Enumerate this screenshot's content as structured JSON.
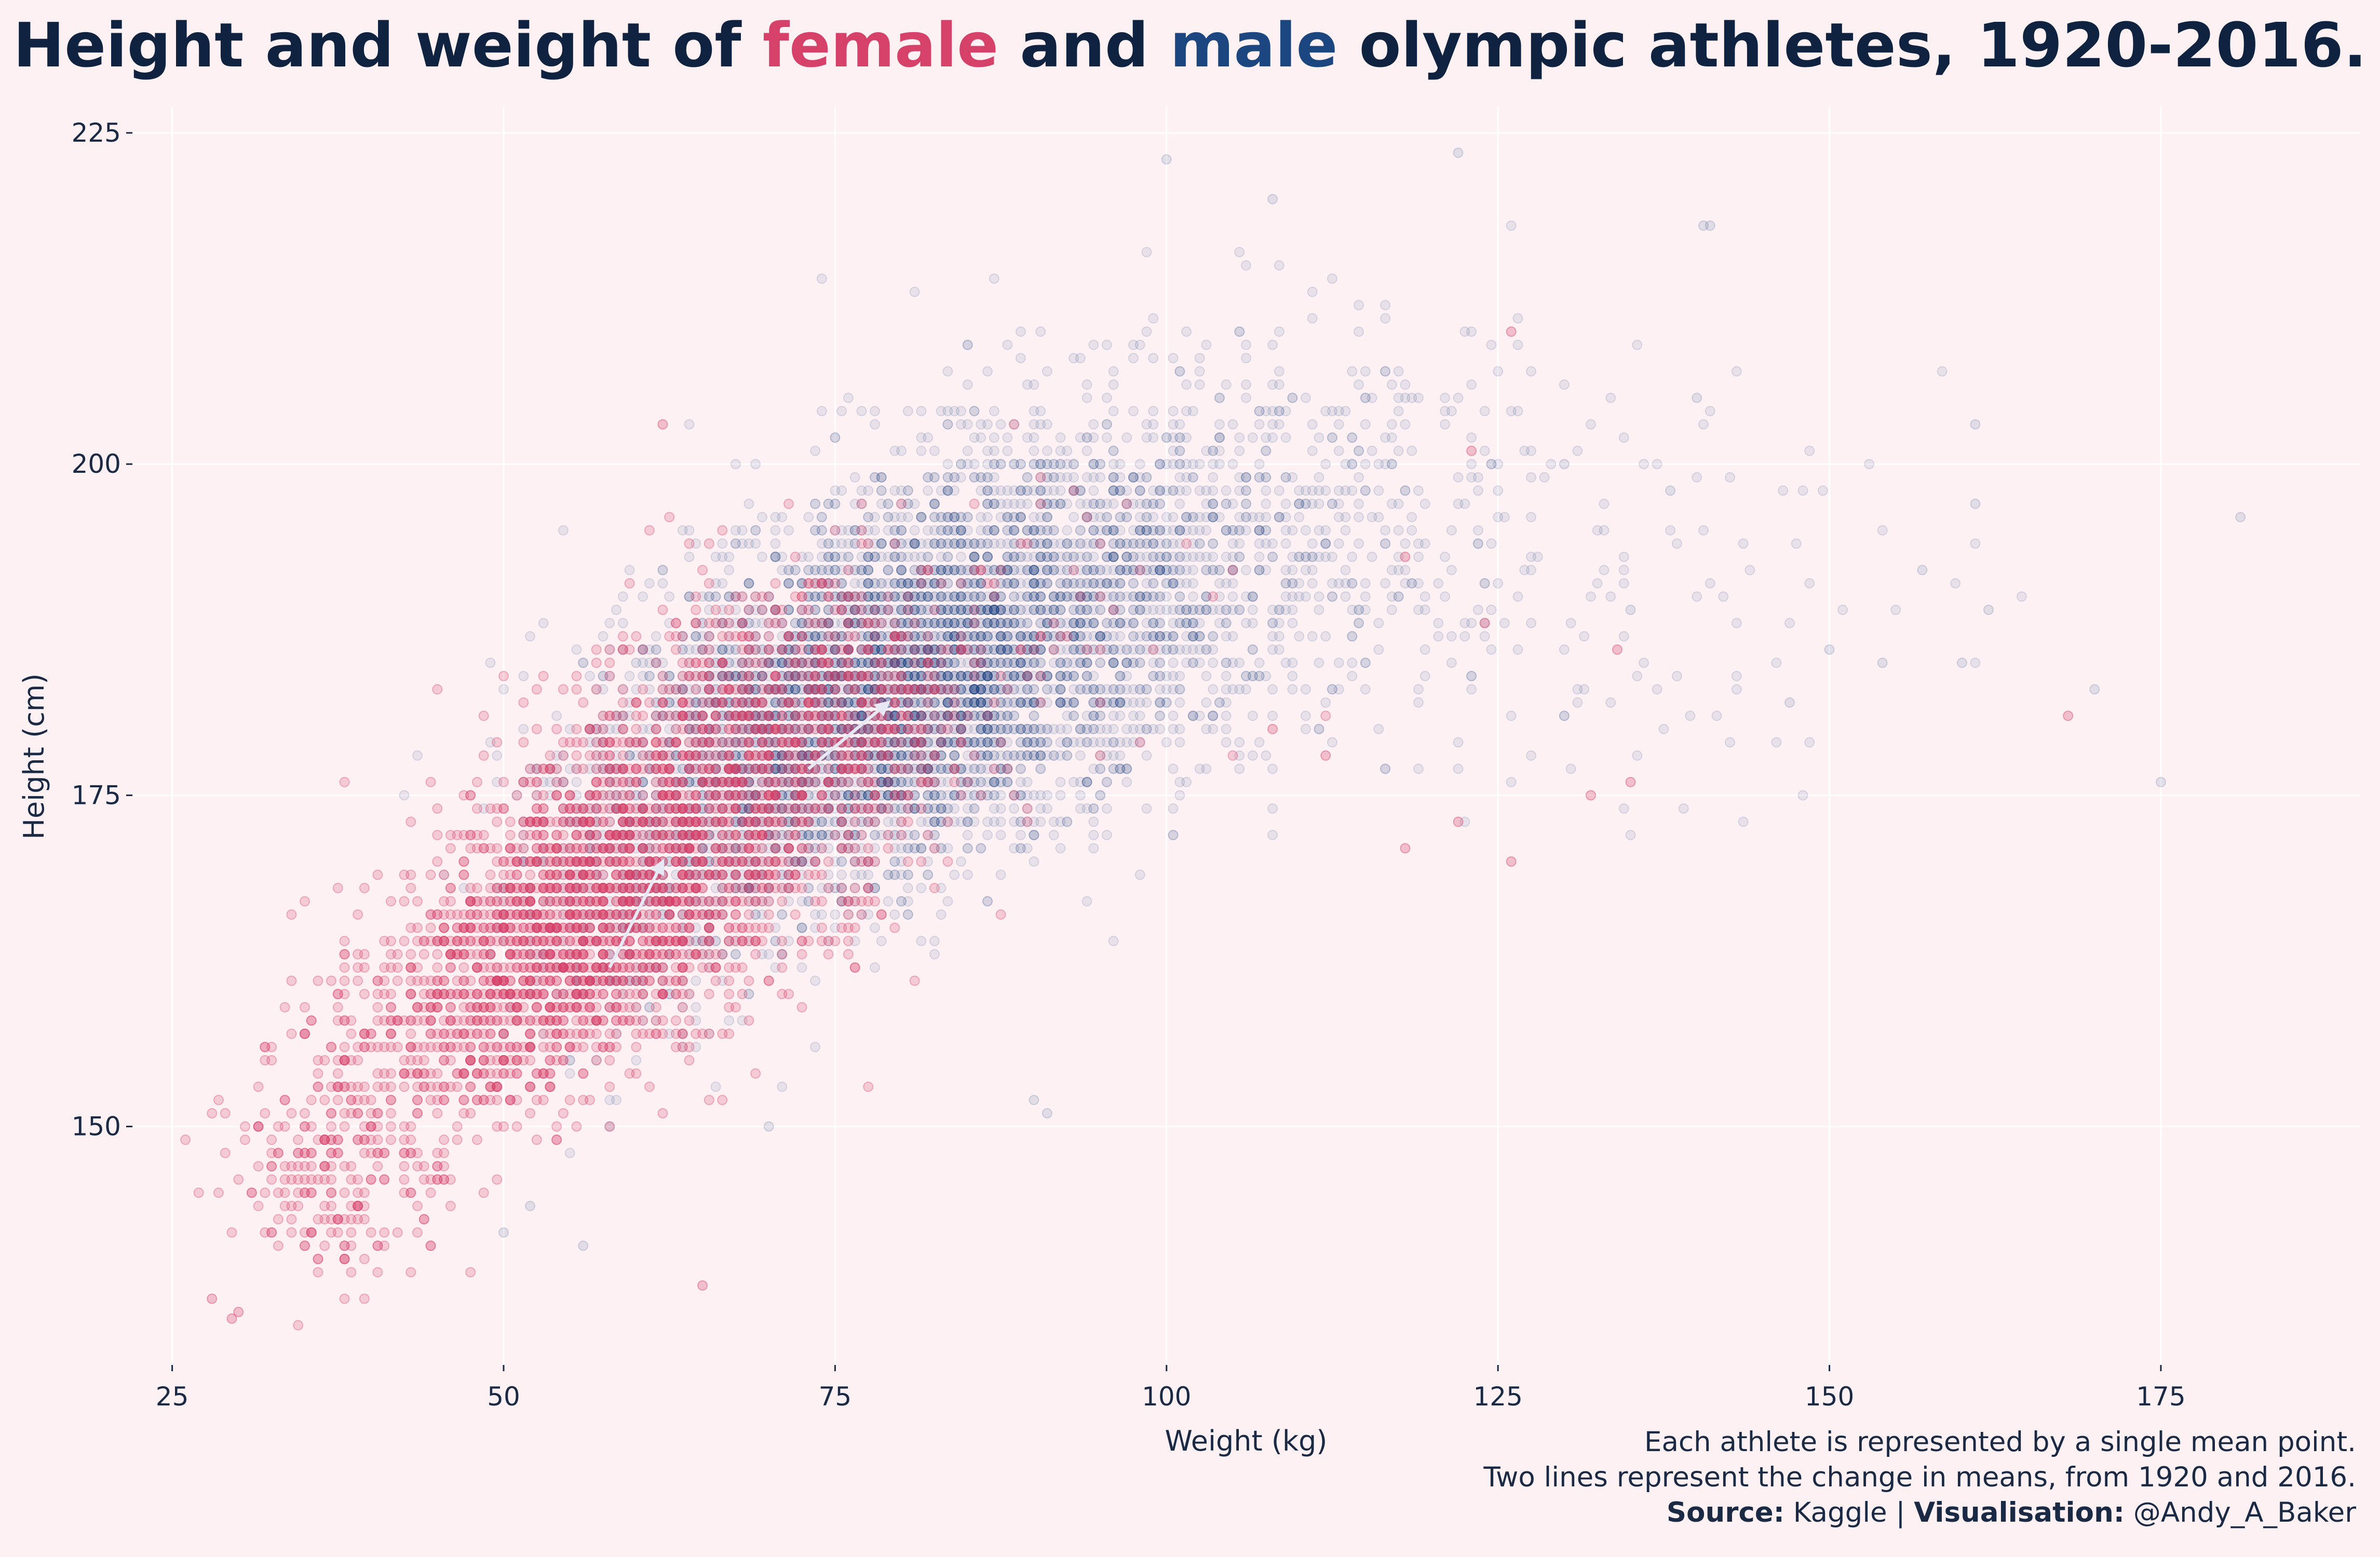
{
  "title": {
    "part1": "Height and weight of ",
    "female_word": "female",
    "part2": " and ",
    "male_word": "male",
    "part3": " olympic athletes, 1920-2016."
  },
  "colors": {
    "female": "#d6416a",
    "male": "#1c4680",
    "background": "#fdf1f4",
    "text": "#0f2341",
    "arrow": "#e8e8f4"
  },
  "chart_data": {
    "type": "scatter",
    "xlabel": "Weight (kg)",
    "ylabel": "Height (cm)",
    "xlim": [
      22,
      190
    ],
    "ylim": [
      132,
      227
    ],
    "x_ticks": [
      25,
      50,
      75,
      100,
      125,
      150,
      175
    ],
    "y_ticks": [
      150,
      175,
      200,
      225
    ],
    "grid": true,
    "legend": "none (series colours in title)",
    "series": [
      {
        "name": "female",
        "color": "#d6416a",
        "centers": [
          {
            "x": 38,
            "y": 148,
            "sx": 4,
            "sy": 5,
            "n": 260
          },
          {
            "x": 47,
            "y": 158,
            "sx": 5,
            "sy": 5,
            "n": 500
          },
          {
            "x": 55,
            "y": 165,
            "sx": 5,
            "sy": 5,
            "n": 900
          },
          {
            "x": 62,
            "y": 171,
            "sx": 6,
            "sy": 6,
            "n": 900
          },
          {
            "x": 70,
            "y": 178,
            "sx": 6,
            "sy": 6,
            "n": 650
          },
          {
            "x": 78,
            "y": 183,
            "sx": 6,
            "sy": 5,
            "n": 300
          },
          {
            "x": 90,
            "y": 188,
            "sx": 10,
            "sy": 7,
            "n": 50
          }
        ],
        "points": [
          {
            "x": 28,
            "y": 137
          },
          {
            "x": 29.5,
            "y": 135.5
          },
          {
            "x": 30,
            "y": 136
          },
          {
            "x": 62,
            "y": 203
          },
          {
            "x": 65,
            "y": 138
          },
          {
            "x": 126,
            "y": 210
          },
          {
            "x": 123,
            "y": 201
          },
          {
            "x": 124,
            "y": 188
          },
          {
            "x": 132,
            "y": 175
          },
          {
            "x": 135,
            "y": 176
          },
          {
            "x": 134,
            "y": 186
          },
          {
            "x": 168,
            "y": 181
          },
          {
            "x": 118,
            "y": 193
          },
          {
            "x": 112,
            "y": 178
          },
          {
            "x": 118,
            "y": 171
          },
          {
            "x": 122,
            "y": 173
          },
          {
            "x": 126,
            "y": 170
          },
          {
            "x": 108,
            "y": 180
          }
        ],
        "mean_change": {
          "from": {
            "x": 58,
            "y": 162
          },
          "to": {
            "x": 62,
            "y": 170
          }
        }
      },
      {
        "name": "male",
        "color": "#1c4680",
        "centers": [
          {
            "x": 60,
            "y": 168,
            "sx": 5,
            "sy": 6,
            "n": 400
          },
          {
            "x": 70,
            "y": 177,
            "sx": 7,
            "sy": 6,
            "n": 1300
          },
          {
            "x": 78,
            "y": 182,
            "sx": 7,
            "sy": 6,
            "n": 1700
          },
          {
            "x": 86,
            "y": 187,
            "sx": 8,
            "sy": 6,
            "n": 1400
          },
          {
            "x": 95,
            "y": 192,
            "sx": 9,
            "sy": 7,
            "n": 950
          },
          {
            "x": 110,
            "y": 196,
            "sx": 11,
            "sy": 8,
            "n": 380
          },
          {
            "x": 130,
            "y": 190,
            "sx": 14,
            "sy": 8,
            "n": 110
          }
        ],
        "points": [
          {
            "x": 122,
            "y": 223.5
          },
          {
            "x": 140.5,
            "y": 218
          },
          {
            "x": 141,
            "y": 218
          },
          {
            "x": 100,
            "y": 223
          },
          {
            "x": 108,
            "y": 220
          },
          {
            "x": 181,
            "y": 196
          },
          {
            "x": 175,
            "y": 176
          },
          {
            "x": 170,
            "y": 183
          },
          {
            "x": 161,
            "y": 203
          },
          {
            "x": 161,
            "y": 197
          },
          {
            "x": 162,
            "y": 189
          },
          {
            "x": 160,
            "y": 185
          },
          {
            "x": 154,
            "y": 185
          },
          {
            "x": 157,
            "y": 192
          },
          {
            "x": 150,
            "y": 186
          },
          {
            "x": 147,
            "y": 182
          },
          {
            "x": 90,
            "y": 152
          },
          {
            "x": 91,
            "y": 151
          },
          {
            "x": 50,
            "y": 142
          },
          {
            "x": 56,
            "y": 141
          },
          {
            "x": 52,
            "y": 144
          },
          {
            "x": 70,
            "y": 150
          },
          {
            "x": 60,
            "y": 185
          },
          {
            "x": 58,
            "y": 150
          },
          {
            "x": 138,
            "y": 198
          },
          {
            "x": 140,
            "y": 205
          },
          {
            "x": 135,
            "y": 189
          },
          {
            "x": 130,
            "y": 200
          }
        ],
        "mean_change": {
          "from": {
            "x": 73,
            "y": 177
          },
          "to": {
            "x": 79,
            "y": 182
          }
        }
      }
    ]
  },
  "caption": {
    "line1": "Each athlete is represented by a single mean point.",
    "line2": "Two lines represent the change in means, from 1920 and 2016.",
    "source_label": "Source:",
    "source_value": " Kaggle | ",
    "vis_label": "Visualisation:",
    "vis_value": " @Andy_A_Baker"
  }
}
